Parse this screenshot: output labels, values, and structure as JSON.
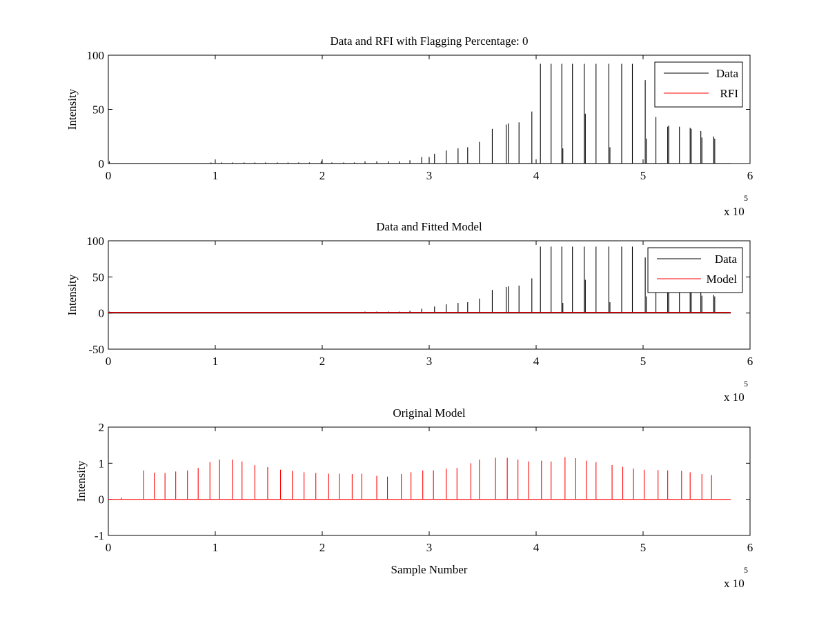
{
  "chart_data": [
    {
      "type": "line",
      "title": "Data and RFI with Flagging Percentage: 0",
      "ylabel": "Intensity",
      "xlabel": "",
      "xlim": [
        0,
        6
      ],
      "ylim": [
        0,
        100
      ],
      "xticks": [
        "0",
        "1",
        "2",
        "3",
        "4",
        "5",
        "6"
      ],
      "yticks": [
        "0",
        "50",
        "100"
      ],
      "x_multiplier": "x 10",
      "x_multiplier_exp": "5",
      "legend": {
        "placement": "top-right",
        "entries": [
          "Data",
          "RFI"
        ]
      },
      "colors": {
        "Data": "#000000",
        "RFI": "#ff0000"
      },
      "series": [
        {
          "name": "Data",
          "x": [
            0.01,
            0.96,
            1.06,
            1.16,
            1.27,
            1.37,
            1.47,
            1.58,
            1.68,
            1.78,
            1.88,
            1.99,
            2.09,
            2.2,
            2.3,
            2.4,
            2.51,
            2.62,
            2.72,
            2.82,
            2.93,
            3.0,
            3.05,
            3.16,
            3.27,
            3.36,
            3.47,
            3.59,
            3.72,
            3.74,
            3.84,
            3.96,
            4.04,
            4.14,
            4.24,
            4.25,
            4.34,
            4.45,
            4.46,
            4.56,
            4.68,
            4.69,
            4.8,
            4.9,
            5.02,
            5.03,
            5.12,
            5.23,
            5.24,
            5.34,
            5.44,
            5.45,
            5.54,
            5.55,
            5.66,
            5.67
          ],
          "y": [
            2,
            1,
            1,
            1,
            1,
            1,
            1,
            1,
            1,
            1,
            1,
            2,
            1,
            1,
            1,
            2,
            2,
            2,
            2,
            3,
            6,
            6,
            9,
            12,
            14,
            15,
            20,
            32,
            36,
            37,
            38,
            48,
            92,
            92,
            92,
            14,
            92,
            92,
            46,
            92,
            92,
            15,
            92,
            92,
            77,
            23,
            43,
            34,
            35,
            34,
            33,
            32,
            30,
            24,
            25,
            23
          ]
        },
        {
          "name": "RFI",
          "x": [],
          "y": []
        }
      ]
    },
    {
      "type": "line",
      "title": "Data and Fitted Model",
      "ylabel": "Intensity",
      "xlabel": "",
      "xlim": [
        0,
        6
      ],
      "ylim": [
        -50,
        100
      ],
      "xticks": [
        "0",
        "1",
        "2",
        "3",
        "4",
        "5",
        "6"
      ],
      "yticks": [
        "-50",
        "0",
        "50",
        "100"
      ],
      "x_multiplier": "x 10",
      "x_multiplier_exp": "5",
      "legend": {
        "placement": "top-right",
        "entries": [
          "Data",
          "Model"
        ]
      },
      "colors": {
        "Data": "#000000",
        "Model": "#ff0000"
      },
      "series": [
        {
          "name": "Data",
          "x": [
            0.01,
            0.19,
            2.4,
            2.51,
            2.62,
            2.72,
            2.82,
            2.93,
            3.05,
            3.16,
            3.27,
            3.36,
            3.47,
            3.59,
            3.72,
            3.74,
            3.84,
            3.96,
            4.04,
            4.14,
            4.24,
            4.25,
            4.34,
            4.45,
            4.46,
            4.56,
            4.68,
            4.69,
            4.8,
            4.9,
            5.02,
            5.03,
            5.12,
            5.23,
            5.24,
            5.34,
            5.44,
            5.45,
            5.54,
            5.55,
            5.66,
            5.67
          ],
          "y": [
            2,
            1,
            2,
            2,
            2,
            2,
            3,
            6,
            9,
            12,
            14,
            15,
            20,
            32,
            36,
            37,
            38,
            48,
            92,
            92,
            92,
            14,
            92,
            92,
            46,
            92,
            92,
            15,
            92,
            92,
            77,
            23,
            43,
            34,
            35,
            34,
            33,
            32,
            30,
            24,
            25,
            23
          ]
        },
        {
          "name": "Model",
          "x": [
            0,
            5.82
          ],
          "y": [
            1,
            1
          ]
        }
      ]
    },
    {
      "type": "line",
      "title": "Original Model",
      "ylabel": "Intensity",
      "xlabel": "Sample Number",
      "xlim": [
        0,
        6
      ],
      "ylim": [
        -1,
        2
      ],
      "xticks": [
        "0",
        "1",
        "2",
        "3",
        "4",
        "5",
        "6"
      ],
      "yticks": [
        "-1",
        "0",
        "1",
        "2"
      ],
      "x_multiplier": "x 10",
      "x_multiplier_exp": "5",
      "colors": {
        "Model": "#ff0000"
      },
      "series": [
        {
          "name": "",
          "x": [
            0.12,
            0.33,
            0.43,
            0.53,
            0.63,
            0.74,
            0.84,
            0.95,
            1.04,
            1.16,
            1.25,
            1.37,
            1.49,
            1.61,
            1.72,
            1.83,
            1.94,
            2.06,
            2.16,
            2.28,
            2.37,
            2.51,
            2.61,
            2.74,
            2.83,
            2.94,
            3.04,
            3.16,
            3.26,
            3.39,
            3.47,
            3.62,
            3.73,
            3.83,
            3.93,
            4.05,
            4.14,
            4.27,
            4.37,
            4.47,
            4.56,
            4.71,
            4.81,
            4.91,
            5.01,
            5.14,
            5.23,
            5.36,
            5.44,
            5.55,
            5.64
          ],
          "y": [
            0.05,
            0.8,
            0.74,
            0.73,
            0.77,
            0.8,
            0.87,
            1.03,
            1.1,
            1.1,
            1.05,
            0.95,
            0.89,
            0.82,
            0.79,
            0.75,
            0.73,
            0.71,
            0.71,
            0.7,
            0.71,
            0.65,
            0.63,
            0.7,
            0.75,
            0.8,
            0.8,
            0.85,
            0.87,
            1.0,
            1.1,
            1.15,
            1.15,
            1.1,
            1.05,
            1.07,
            1.05,
            1.17,
            1.14,
            1.07,
            1.03,
            0.95,
            0.9,
            0.85,
            0.82,
            0.81,
            0.8,
            0.79,
            0.75,
            0.7,
            0.67
          ]
        }
      ]
    }
  ]
}
